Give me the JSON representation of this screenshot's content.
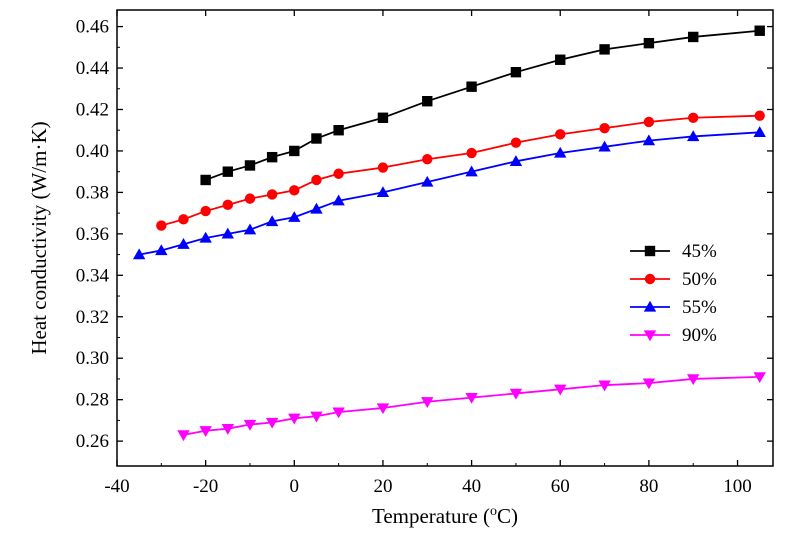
{
  "chart_data": {
    "type": "line",
    "xlabel": "Temperature (",
    "xlabel_sup": "o",
    "xlabel_suffix": "C)",
    "ylabel": "Heat conductivity (W/m·K)",
    "xlim": [
      -40,
      108
    ],
    "ylim": [
      0.248,
      0.468
    ],
    "xticks": [
      -40,
      -20,
      0,
      20,
      40,
      60,
      80,
      100
    ],
    "yticks": [
      0.26,
      0.28,
      0.3,
      0.32,
      0.34,
      0.36,
      0.38,
      0.4,
      0.42,
      0.44,
      0.46
    ],
    "xtick_labels": [
      "-40",
      "-20",
      "0",
      "20",
      "40",
      "60",
      "80",
      "100"
    ],
    "ytick_labels": [
      "0.26",
      "0.28",
      "0.30",
      "0.32",
      "0.34",
      "0.36",
      "0.38",
      "0.40",
      "0.42",
      "0.44",
      "0.46"
    ],
    "grid": false,
    "legend_position": "right",
    "series": [
      {
        "name": "45%",
        "color": "#000000",
        "marker": "square",
        "x": [
          -20,
          -15,
          -10,
          -5,
          0,
          5,
          10,
          20,
          30,
          40,
          50,
          60,
          70,
          80,
          90,
          105
        ],
        "y": [
          0.386,
          0.39,
          0.393,
          0.397,
          0.4,
          0.406,
          0.41,
          0.416,
          0.424,
          0.431,
          0.438,
          0.444,
          0.449,
          0.452,
          0.455,
          0.458
        ]
      },
      {
        "name": "50%",
        "color": "#ff0000",
        "marker": "circle",
        "x": [
          -30,
          -25,
          -20,
          -15,
          -10,
          -5,
          0,
          5,
          10,
          20,
          30,
          40,
          50,
          60,
          70,
          80,
          90,
          105
        ],
        "y": [
          0.364,
          0.367,
          0.371,
          0.374,
          0.377,
          0.379,
          0.381,
          0.386,
          0.389,
          0.392,
          0.396,
          0.399,
          0.404,
          0.408,
          0.411,
          0.414,
          0.416,
          0.417
        ]
      },
      {
        "name": "55%",
        "color": "#0000ff",
        "marker": "triangle-up",
        "x": [
          -35,
          -30,
          -25,
          -20,
          -15,
          -10,
          -5,
          0,
          5,
          10,
          20,
          30,
          40,
          50,
          60,
          70,
          80,
          90,
          105
        ],
        "y": [
          0.35,
          0.352,
          0.355,
          0.358,
          0.36,
          0.362,
          0.366,
          0.368,
          0.372,
          0.376,
          0.38,
          0.385,
          0.39,
          0.395,
          0.399,
          0.402,
          0.405,
          0.407,
          0.409
        ]
      },
      {
        "name": "90%",
        "color": "#ff00ff",
        "marker": "triangle-down",
        "x": [
          -25,
          -20,
          -15,
          -10,
          -5,
          0,
          5,
          10,
          20,
          30,
          40,
          50,
          60,
          70,
          80,
          90,
          105
        ],
        "y": [
          0.263,
          0.265,
          0.266,
          0.268,
          0.269,
          0.271,
          0.272,
          0.274,
          0.276,
          0.279,
          0.281,
          0.283,
          0.285,
          0.287,
          0.288,
          0.29,
          0.291
        ]
      }
    ]
  }
}
